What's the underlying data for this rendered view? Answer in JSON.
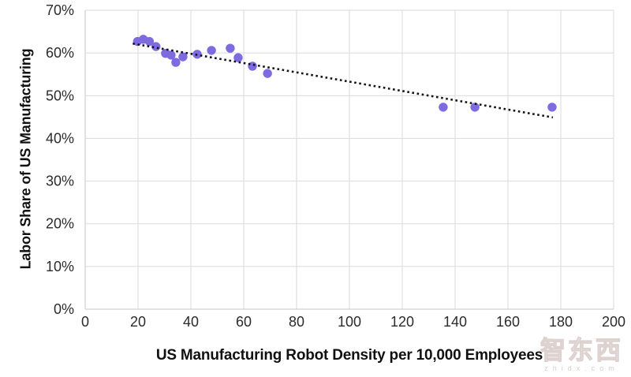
{
  "watermark": {
    "logo": "智东西",
    "url": "zhidx.com"
  },
  "chart_data": {
    "type": "scatter",
    "title": "",
    "xlabel": "US Manufacturing Robot Density per 10,000 Employees",
    "ylabel": "Labor Share of US Manufacturing",
    "xlim": [
      0,
      200
    ],
    "ylim": [
      0,
      70
    ],
    "x_ticks": [
      0,
      20,
      40,
      60,
      80,
      100,
      120,
      140,
      160,
      180,
      200
    ],
    "y_ticks": [
      0,
      10,
      20,
      30,
      40,
      50,
      60,
      70
    ],
    "y_tick_labels": [
      "0%",
      "10%",
      "20%",
      "30%",
      "40%",
      "50%",
      "60%",
      "70%"
    ],
    "grid": true,
    "legend": false,
    "points": [
      [
        19.8,
        62.7
      ],
      [
        22.0,
        63.2
      ],
      [
        24.3,
        62.7
      ],
      [
        26.8,
        61.5
      ],
      [
        30.4,
        59.9
      ],
      [
        32.5,
        59.5
      ],
      [
        34.3,
        57.8
      ],
      [
        37.0,
        59.1
      ],
      [
        42.4,
        59.7
      ],
      [
        47.8,
        60.6
      ],
      [
        54.9,
        61.1
      ],
      [
        57.9,
        58.9
      ],
      [
        63.3,
        56.9
      ],
      [
        69.0,
        55.2
      ],
      [
        135.5,
        47.3
      ],
      [
        147.5,
        47.3
      ],
      [
        176.7,
        47.3
      ]
    ],
    "trendline": {
      "style": "dotted",
      "from": [
        18.0,
        62.2
      ],
      "to": [
        177.0,
        44.9
      ]
    },
    "colors": {
      "point": "#7e6be0",
      "trendline": "#14141e",
      "gridline": "#dadada",
      "axis_line": "#c4c4c4",
      "tick_text": "#2b2b2b",
      "title_text": "#111111"
    }
  }
}
